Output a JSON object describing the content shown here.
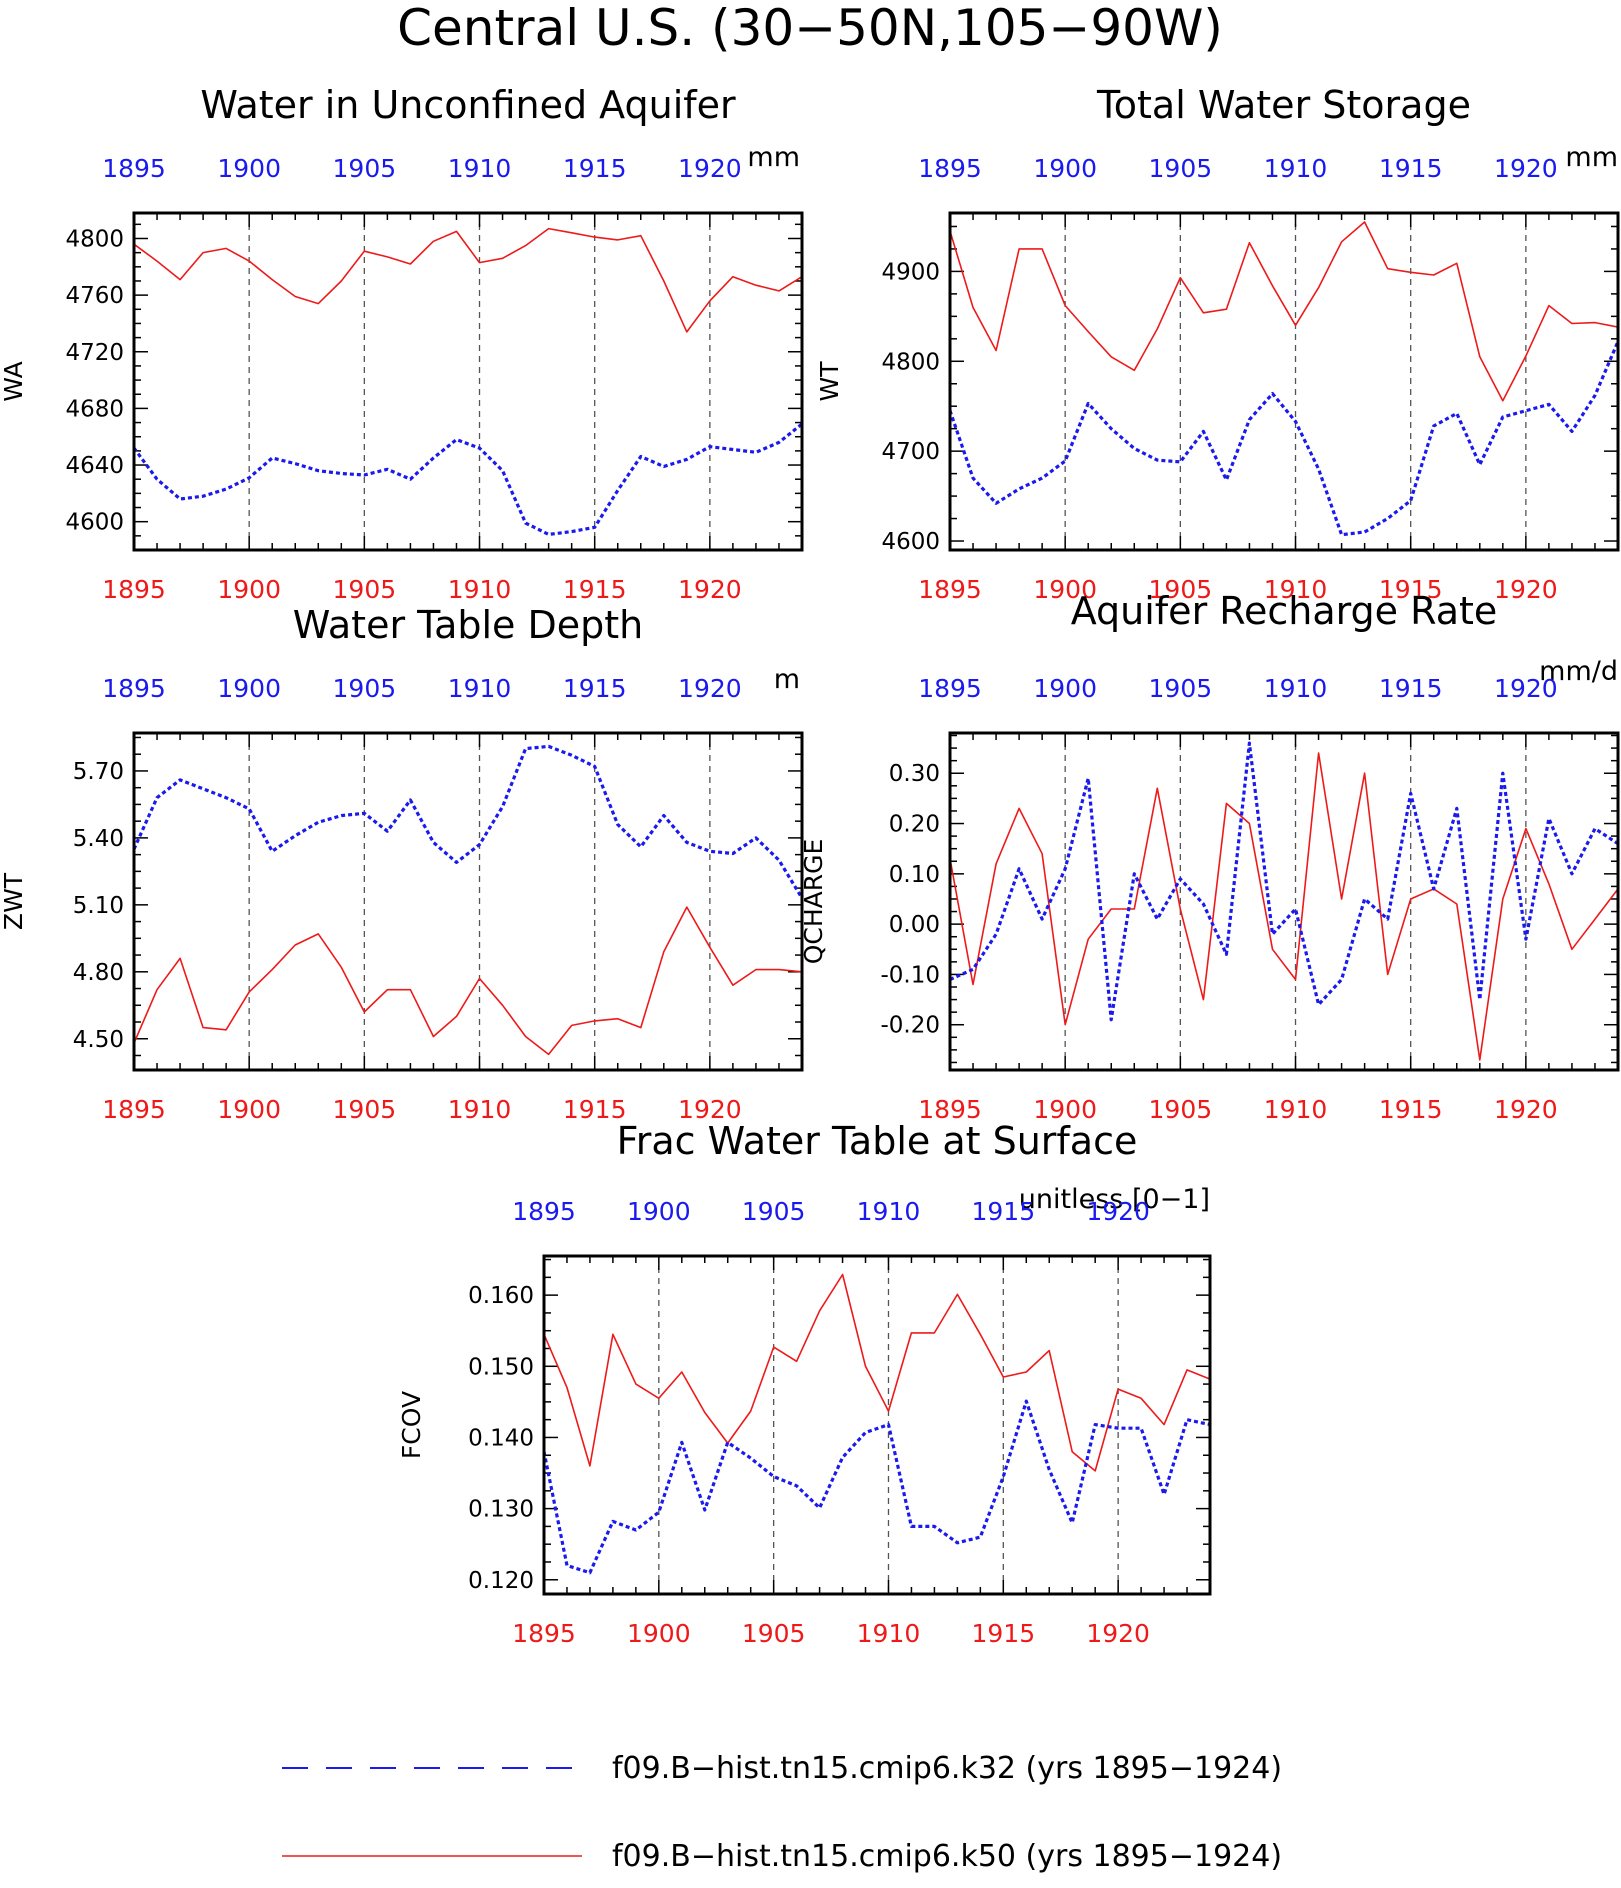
{
  "figure": {
    "title": "Central U.S. (30−50N,105−90W)",
    "colors": {
      "k32": "#1a1aee",
      "k50": "#ee1a1a",
      "grid": "#555555",
      "axis": "#000000"
    }
  },
  "legend": {
    "entries": [
      {
        "label": "f09.B−hist.tn15.cmip6.k32 (yrs 1895−1924)",
        "series": "k32"
      },
      {
        "label": "f09.B−hist.tn15.cmip6.k50 (yrs 1895−1924)",
        "series": "k50"
      }
    ]
  },
  "chart_data": [
    {
      "type": "line",
      "title": "Water in Unconfined Aquifer",
      "units": "mm",
      "ylabel": "WA",
      "x": [
        1895,
        1896,
        1897,
        1898,
        1899,
        1900,
        1901,
        1902,
        1903,
        1904,
        1905,
        1906,
        1907,
        1908,
        1909,
        1910,
        1911,
        1912,
        1913,
        1914,
        1915,
        1916,
        1917,
        1918,
        1919,
        1920,
        1921,
        1922,
        1923,
        1924
      ],
      "xlim": [
        1895,
        1924
      ],
      "ylim": [
        4580,
        4818
      ],
      "yticks": [
        4600,
        4640,
        4680,
        4720,
        4760,
        4800
      ],
      "ytick_labels": [
        "4600",
        "4640",
        "4680",
        "4720",
        "4760",
        "4800"
      ],
      "xticks": [
        1895,
        1900,
        1905,
        1910,
        1915,
        1920
      ],
      "series": [
        {
          "id": "k50",
          "values": [
            4796,
            4784,
            4771,
            4790,
            4793,
            4784,
            4771,
            4759,
            4754,
            4770,
            4791,
            4787,
            4782,
            4798,
            4805,
            4783,
            4786,
            4795,
            4807,
            4804,
            4801,
            4799,
            4802,
            4770,
            4734,
            4756,
            4773,
            4767,
            4763,
            4773
          ]
        },
        {
          "id": "k32",
          "values": [
            4652,
            4630,
            4616,
            4618,
            4623,
            4631,
            4645,
            4641,
            4636,
            4634,
            4633,
            4637,
            4630,
            4645,
            4658,
            4652,
            4636,
            4599,
            4591,
            4593,
            4596,
            4622,
            4646,
            4639,
            4644,
            4653,
            4651,
            4649,
            4656,
            4669
          ]
        }
      ]
    },
    {
      "type": "line",
      "title": "Total Water Storage",
      "units": "mm",
      "ylabel": "WT",
      "x": [
        1895,
        1896,
        1897,
        1898,
        1899,
        1900,
        1901,
        1902,
        1903,
        1904,
        1905,
        1906,
        1907,
        1908,
        1909,
        1910,
        1911,
        1912,
        1913,
        1914,
        1915,
        1916,
        1917,
        1918,
        1919,
        1920,
        1921,
        1922,
        1923,
        1924
      ],
      "xlim": [
        1895,
        1924
      ],
      "ylim": [
        4590,
        4965
      ],
      "yticks": [
        4600,
        4700,
        4800,
        4900
      ],
      "ytick_labels": [
        "4600",
        "4700",
        "4800",
        "4900"
      ],
      "xticks": [
        1895,
        1900,
        1905,
        1910,
        1915,
        1920
      ],
      "series": [
        {
          "id": "k50",
          "values": [
            4945,
            4860,
            4812,
            4925,
            4925,
            4862,
            4833,
            4805,
            4790,
            4836,
            4893,
            4854,
            4858,
            4932,
            4884,
            4840,
            4882,
            4933,
            4955,
            4903,
            4899,
            4896,
            4909,
            4805,
            4756,
            4806,
            4862,
            4842,
            4843,
            4838
          ]
        },
        {
          "id": "k32",
          "values": [
            4745,
            4670,
            4642,
            4658,
            4670,
            4689,
            4753,
            4725,
            4703,
            4690,
            4688,
            4722,
            4668,
            4735,
            4764,
            4733,
            4680,
            4607,
            4610,
            4625,
            4645,
            4728,
            4742,
            4685,
            4738,
            4745,
            4752,
            4722,
            4762,
            4822
          ]
        }
      ]
    },
    {
      "type": "line",
      "title": "Water Table Depth",
      "units": "m",
      "ylabel": "ZWT",
      "x": [
        1895,
        1896,
        1897,
        1898,
        1899,
        1900,
        1901,
        1902,
        1903,
        1904,
        1905,
        1906,
        1907,
        1908,
        1909,
        1910,
        1911,
        1912,
        1913,
        1914,
        1915,
        1916,
        1917,
        1918,
        1919,
        1920,
        1921,
        1922,
        1923,
        1924
      ],
      "xlim": [
        1895,
        1924
      ],
      "ylim": [
        4.36,
        5.87
      ],
      "yticks": [
        4.5,
        4.8,
        5.1,
        5.4,
        5.7
      ],
      "ytick_labels": [
        "4.50",
        "4.80",
        "5.10",
        "5.40",
        "5.70"
      ],
      "xticks": [
        1895,
        1900,
        1905,
        1910,
        1915,
        1920
      ],
      "series": [
        {
          "id": "k50",
          "values": [
            4.48,
            4.72,
            4.86,
            4.55,
            4.54,
            4.71,
            4.81,
            4.92,
            4.97,
            4.82,
            4.62,
            4.72,
            4.72,
            4.51,
            4.6,
            4.77,
            4.65,
            4.51,
            4.43,
            4.56,
            4.58,
            4.59,
            4.55,
            4.89,
            5.09,
            4.91,
            4.74,
            4.81,
            4.81,
            4.8
          ]
        },
        {
          "id": "k32",
          "values": [
            5.35,
            5.58,
            5.66,
            5.62,
            5.58,
            5.53,
            5.34,
            5.41,
            5.47,
            5.5,
            5.51,
            5.43,
            5.57,
            5.38,
            5.29,
            5.37,
            5.54,
            5.8,
            5.81,
            5.77,
            5.72,
            5.46,
            5.36,
            5.5,
            5.38,
            5.34,
            5.33,
            5.4,
            5.3,
            5.13
          ]
        }
      ]
    },
    {
      "type": "line",
      "title": "Aquifer Recharge Rate",
      "units": "mm/d",
      "ylabel": "QCHARGE",
      "x": [
        1895,
        1896,
        1897,
        1898,
        1899,
        1900,
        1901,
        1902,
        1903,
        1904,
        1905,
        1906,
        1907,
        1908,
        1909,
        1910,
        1911,
        1912,
        1913,
        1914,
        1915,
        1916,
        1917,
        1918,
        1919,
        1920,
        1921,
        1922,
        1923,
        1924
      ],
      "xlim": [
        1895,
        1924
      ],
      "ylim": [
        -0.29,
        0.38
      ],
      "yticks": [
        -0.2,
        -0.1,
        0.0,
        0.1,
        0.2,
        0.3
      ],
      "ytick_labels": [
        "-0.20",
        "-0.10",
        "0.00",
        "0.10",
        "0.20",
        "0.30"
      ],
      "xticks": [
        1895,
        1900,
        1905,
        1910,
        1915,
        1920
      ],
      "series": [
        {
          "id": "k50",
          "values": [
            0.13,
            -0.12,
            0.12,
            0.23,
            0.14,
            -0.2,
            -0.03,
            0.03,
            0.03,
            0.27,
            0.03,
            -0.15,
            0.24,
            0.2,
            -0.05,
            -0.11,
            0.34,
            0.05,
            0.3,
            -0.1,
            0.05,
            0.07,
            0.04,
            -0.27,
            0.05,
            0.19,
            0.08,
            -0.05,
            0.01,
            0.07
          ]
        },
        {
          "id": "k32",
          "values": [
            -0.11,
            -0.09,
            -0.02,
            0.11,
            0.01,
            0.11,
            0.29,
            -0.19,
            0.1,
            0.01,
            0.09,
            0.04,
            -0.06,
            0.36,
            -0.02,
            0.03,
            -0.16,
            -0.11,
            0.05,
            0.01,
            0.26,
            0.07,
            0.23,
            -0.15,
            0.3,
            -0.03,
            0.21,
            0.1,
            0.19,
            0.16
          ]
        }
      ]
    },
    {
      "type": "line",
      "title": "Frac Water Table at Surface",
      "units": "unitless [0−1]",
      "ylabel": "FCOV",
      "x": [
        1895,
        1896,
        1897,
        1898,
        1899,
        1900,
        1901,
        1902,
        1903,
        1904,
        1905,
        1906,
        1907,
        1908,
        1909,
        1910,
        1911,
        1912,
        1913,
        1914,
        1915,
        1916,
        1917,
        1918,
        1919,
        1920,
        1921,
        1922,
        1923,
        1924
      ],
      "xlim": [
        1895,
        1924
      ],
      "ylim": [
        0.118,
        0.1655
      ],
      "yticks": [
        0.12,
        0.13,
        0.14,
        0.15,
        0.16
      ],
      "ytick_labels": [
        "0.120",
        "0.130",
        "0.140",
        "0.150",
        "0.160"
      ],
      "xticks": [
        1895,
        1900,
        1905,
        1910,
        1915,
        1920
      ],
      "series": [
        {
          "id": "k50",
          "values": [
            0.1545,
            0.147,
            0.136,
            0.1545,
            0.1475,
            0.1455,
            0.1492,
            0.1435,
            0.1392,
            0.1437,
            0.1527,
            0.1507,
            0.1578,
            0.1629,
            0.15,
            0.1437,
            0.1547,
            0.1547,
            0.1601,
            0.1545,
            0.1485,
            0.1492,
            0.1522,
            0.138,
            0.1353,
            0.1468,
            0.1455,
            0.1418,
            0.1495,
            0.1482
          ]
        },
        {
          "id": "k32",
          "values": [
            0.138,
            0.122,
            0.121,
            0.1282,
            0.127,
            0.1295,
            0.1393,
            0.1298,
            0.1393,
            0.1371,
            0.1345,
            0.1332,
            0.1301,
            0.1372,
            0.1407,
            0.1418,
            0.1275,
            0.1275,
            0.1252,
            0.126,
            0.1345,
            0.1451,
            0.1355,
            0.128,
            0.1418,
            0.1413,
            0.1413,
            0.132,
            0.1425,
            0.1418
          ]
        }
      ]
    }
  ]
}
